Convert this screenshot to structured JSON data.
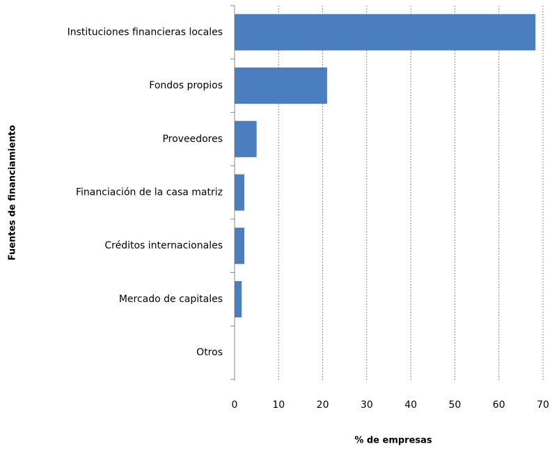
{
  "chart_data": {
    "type": "hbar",
    "categories": [
      "Instituciones financieras locales",
      "Fondos propios",
      "Proveedores",
      "Financiación de la casa matriz",
      "Créditos internacionales",
      "Mercado de capitales",
      "Otros"
    ],
    "values": [
      68.3,
      21.0,
      5.0,
      2.2,
      2.2,
      1.6,
      0
    ],
    "color": "#4a7ebf",
    "xlim": [
      0,
      70
    ],
    "xticks": [
      0,
      10,
      20,
      30,
      40,
      50,
      60,
      70
    ],
    "xlabel": "% de empresas",
    "ylabel": "Fuentes de financiamiento",
    "grid": true
  }
}
